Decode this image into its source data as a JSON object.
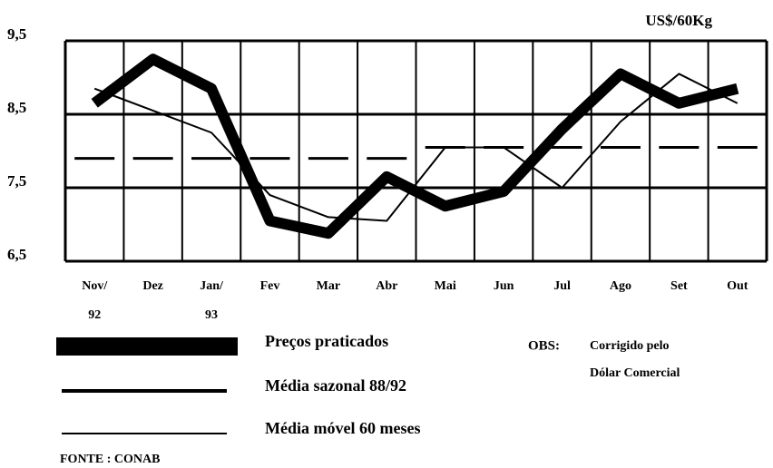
{
  "chart_data": {
    "type": "line",
    "unit_label": "US$/60Kg",
    "categories": [
      "Nov/ 92",
      "Dez",
      "Jan/ 93",
      "Fev",
      "Mar",
      "Abr",
      "Mai",
      "Jun",
      "Jul",
      "Ago",
      "Set",
      "Out"
    ],
    "series": [
      {
        "name": "Preços praticados",
        "color": "#000000",
        "values": [
          8.65,
          9.25,
          8.85,
          7.05,
          6.88,
          7.65,
          7.25,
          7.45,
          8.3,
          9.05,
          8.65,
          8.85
        ]
      },
      {
        "name": "Média sazonal 88/92",
        "color": "#000000",
        "values": [
          7.9,
          7.9,
          7.9,
          7.9,
          7.9,
          7.9,
          8.05,
          8.05,
          8.05,
          8.05,
          8.05,
          8.05
        ]
      },
      {
        "name": "Média móvel 60 meses",
        "color": "#000000",
        "values": [
          8.85,
          8.55,
          8.25,
          7.4,
          7.1,
          7.05,
          8.05,
          8.05,
          7.5,
          8.4,
          9.05,
          8.65
        ]
      }
    ],
    "ylim": [
      6.5,
      9.5
    ],
    "yticks": [
      {
        "value": 6.5,
        "label": "6,5"
      },
      {
        "value": 7.5,
        "label": "7,5"
      },
      {
        "value": 8.5,
        "label": "8,5"
      },
      {
        "value": 9.5,
        "label": "9,5"
      }
    ],
    "grid": true,
    "note_title": "OBS:",
    "note_lines": [
      "Corrigido pelo",
      "Dólar Comercial"
    ],
    "source": "FONTE : CONAB"
  }
}
